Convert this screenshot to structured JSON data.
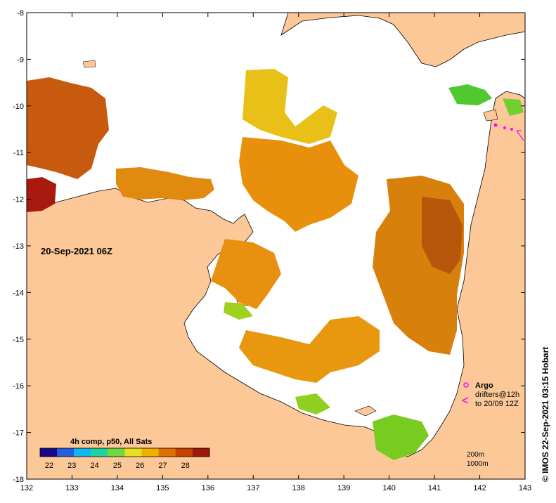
{
  "map": {
    "date_label": "20-Sep-2021 06Z",
    "credit": "© IMOS 22-Sep-2021 03:15 Hobart",
    "composite_label": "4h comp, p50, All Sats",
    "colorbar_ticks": [
      "22",
      "23",
      "24",
      "25",
      "26",
      "27",
      "28"
    ],
    "colorbar_colors": [
      "#1a0a8a",
      "#1f5fe0",
      "#10b8f0",
      "#20d2a0",
      "#70d840",
      "#e8e020",
      "#f0b000",
      "#e07000",
      "#c84000",
      "#a01808"
    ],
    "x_ticks": [
      "132",
      "133",
      "134",
      "135",
      "136",
      "137",
      "138",
      "139",
      "140",
      "141",
      "142",
      "143"
    ],
    "y_ticks": [
      "-8",
      "-9",
      "-10",
      "-11",
      "-12",
      "-13",
      "-14",
      "-15",
      "-16",
      "-17",
      "-18"
    ],
    "legend": {
      "argo": "Argo",
      "drifters": "drifters@12h",
      "drifters_date": "to 20/09 12Z",
      "argo_color": "#ff00ff"
    },
    "contours": {
      "c200": "200m",
      "c1000": "1000m"
    },
    "colors": {
      "land": "#fcc898",
      "sea_nodata": "#ffffff"
    }
  }
}
